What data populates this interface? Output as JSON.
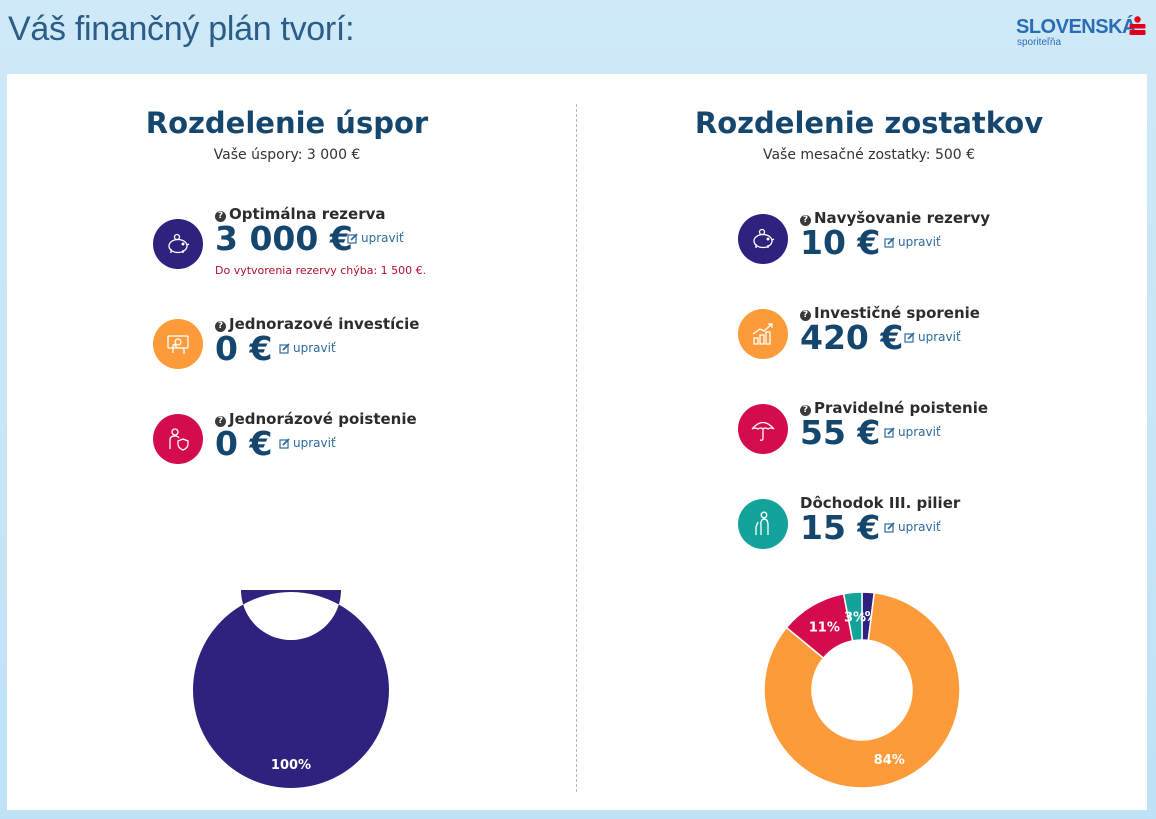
{
  "header": {
    "title": "Váš finančný plán tvorí:",
    "logo_main": "SLOVENSKÁ",
    "logo_sub": "sporiteľňa"
  },
  "savings": {
    "title": "Rozdelenie úspor",
    "subtitle": "Vaše úspory: 3 000 €",
    "items": [
      {
        "label": "Optimálna rezerva",
        "value": "3 000 €",
        "edit": "upraviť",
        "warning": "Do vytvorenia rezervy chýba: 1 500 €.",
        "icon": "piggy-bank-icon",
        "color": "#2d237f"
      },
      {
        "label": "Jednorazové investície",
        "value": "0 €",
        "edit": "upraviť",
        "icon": "cash-hand-icon",
        "color": "#fd9b3a"
      },
      {
        "label": "Jednorázové poistenie",
        "value": "0 €",
        "edit": "upraviť",
        "icon": "person-shield-icon",
        "color": "#d40c4e"
      }
    ]
  },
  "balances": {
    "title": "Rozdelenie zostatkov",
    "subtitle": "Vaše mesačné zostatky: 500 €",
    "items": [
      {
        "label": "Navyšovanie rezervy",
        "value": "10 €",
        "edit": "upraviť",
        "icon": "piggy-bank-icon",
        "color": "#2d237f"
      },
      {
        "label": "Investičné sporenie",
        "value": "420 €",
        "edit": "upraviť",
        "icon": "growth-chart-icon",
        "color": "#fd9b3a"
      },
      {
        "label": "Pravidelné poistenie",
        "value": "55 €",
        "edit": "upraviť",
        "icon": "umbrella-icon",
        "color": "#d40c4e"
      },
      {
        "label": "Dôchodok III. pilier",
        "value": "15 €",
        "edit": "upraviť",
        "icon": "elderly-person-icon",
        "color": "#14a39a"
      }
    ]
  },
  "chart_data": [
    {
      "type": "pie",
      "title": "Rozdelenie úspor",
      "categories": [
        "Optimálna rezerva"
      ],
      "values": [
        100
      ],
      "labels": [
        "100%"
      ],
      "colors": [
        "#2d237f"
      ]
    },
    {
      "type": "pie",
      "title": "Rozdelenie zostatkov",
      "categories": [
        "Navyšovanie rezervy",
        "Investičné sporenie",
        "Pravidelné poistenie",
        "Dôchodok III. pilier"
      ],
      "values": [
        2,
        84,
        11,
        3
      ],
      "labels": [
        "2%",
        "84%",
        "11%",
        "3%"
      ],
      "colors": [
        "#2d237f",
        "#fd9b3a",
        "#d40c4e",
        "#14a39a"
      ]
    }
  ]
}
